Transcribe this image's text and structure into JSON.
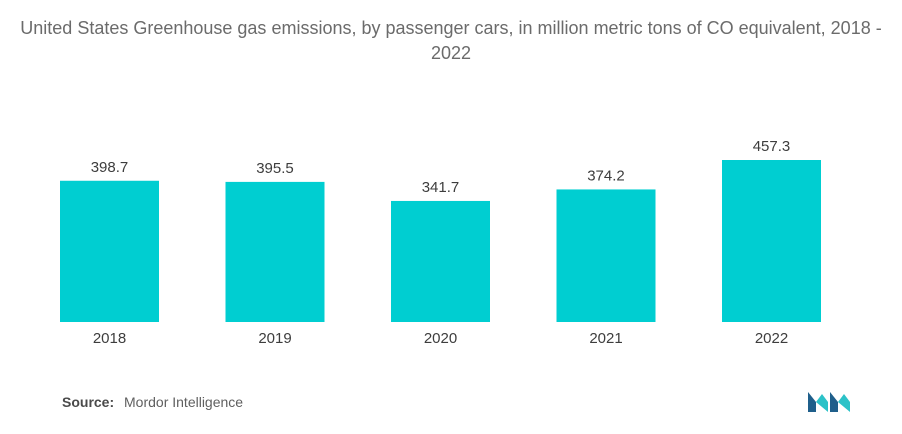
{
  "chart_data": {
    "type": "bar",
    "title": "United States Greenhouse gas emissions, by passenger cars, in million metric tons of CO equivalent, 2018 - 2022",
    "categories": [
      "2018",
      "2019",
      "2020",
      "2021",
      "2022"
    ],
    "values": [
      398.7,
      395.5,
      341.7,
      374.2,
      457.3
    ],
    "value_labels": [
      "398.7",
      "395.5",
      "341.7",
      "374.2",
      "457.3"
    ],
    "xlabel": "",
    "ylabel": "",
    "ylim": [
      0,
      457.3
    ],
    "bar_color": "#00CED1",
    "grid": false,
    "legend": "none"
  },
  "source": {
    "label": "Source:",
    "text": "Mordor Intelligence"
  },
  "logo": {
    "icon": "mordor-intelligence-logo-icon",
    "colors": [
      "#1f5f8b",
      "#2cc2c8"
    ]
  }
}
